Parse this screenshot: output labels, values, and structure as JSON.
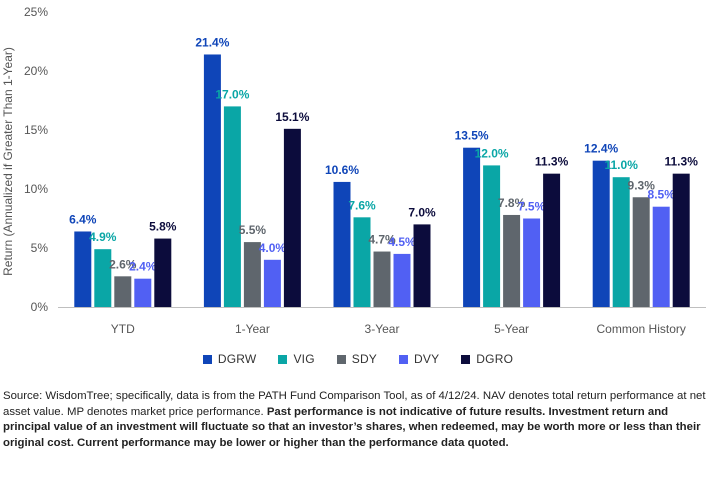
{
  "chart_data": {
    "type": "bar",
    "categories": [
      "YTD",
      "1-Year",
      "3-Year",
      "5-Year",
      "Common History"
    ],
    "series": [
      {
        "name": "DGRW",
        "color": "#0f45b8",
        "values": [
          6.4,
          21.4,
          10.6,
          13.5,
          12.4
        ],
        "labels": [
          "6.4%",
          "21.4%",
          "10.6%",
          "13.5%",
          "12.4%"
        ]
      },
      {
        "name": "VIG",
        "color": "#0aa6a6",
        "values": [
          4.9,
          17.0,
          7.6,
          12.0,
          11.0
        ],
        "labels": [
          "4.9%",
          "17.0%",
          "7.6%",
          "12.0%",
          "11.0%"
        ]
      },
      {
        "name": "SDY",
        "color": "#5f666d",
        "values": [
          2.6,
          5.5,
          4.7,
          7.8,
          9.3
        ],
        "labels": [
          "2.6%",
          "5.5%",
          "4.7%",
          "7.8%",
          "9.3%"
        ]
      },
      {
        "name": "DVY",
        "color": "#5160f3",
        "values": [
          2.4,
          4.0,
          4.5,
          7.5,
          8.5
        ],
        "labels": [
          "2.4%",
          "4.0%",
          "4.5%",
          "7.5%",
          "8.5%"
        ]
      },
      {
        "name": "DGRO",
        "color": "#0c0c3c",
        "values": [
          5.8,
          15.1,
          7.0,
          11.3,
          11.3
        ],
        "labels": [
          "5.8%",
          "15.1%",
          "7.0%",
          "11.3%",
          "11.3%"
        ]
      }
    ],
    "ylabel": "Return (Annualized if Greater Than 1-Year)",
    "ylim": [
      0,
      25
    ],
    "yticks": [
      0,
      5,
      10,
      15,
      20,
      25
    ],
    "ytick_labels": [
      "0%",
      "5%",
      "10%",
      "15%",
      "20%",
      "25%"
    ],
    "grid": false,
    "legend_position": "bottom"
  },
  "source": {
    "normal": "Source: WisdomTree; specifically, data is from the PATH Fund Comparison Tool, as of 4/12/24. NAV denotes total return performance at net asset value. MP denotes market price performance. ",
    "bold": "Past performance is not indicative of future results. Investment return and principal value of an investment will fluctuate so that an investor’s shares, when redeemed, may be worth more or less than their original cost. Current performance may be lower or higher than the performance data quoted."
  }
}
